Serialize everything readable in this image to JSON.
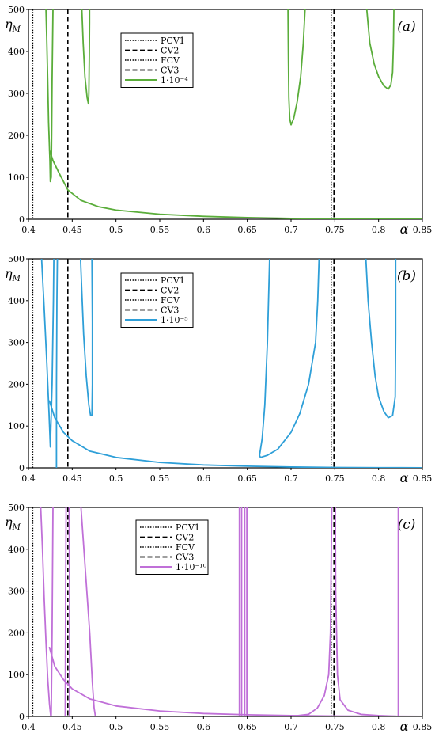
{
  "chart_data": [
    {
      "type": "line",
      "panel_label": "(a)",
      "xlabel": "α",
      "ylabel": "η_M",
      "xlim": [
        0.4,
        0.85
      ],
      "ylim": [
        0,
        500
      ],
      "xticks": [
        0.4,
        0.45,
        0.5,
        0.55,
        0.6,
        0.65,
        0.7,
        0.75,
        0.8,
        0.85
      ],
      "yticks": [
        0,
        100,
        200,
        300,
        400,
        500
      ],
      "grid": false,
      "legend_position": "upper-center",
      "vlines": [
        {
          "name": "PCV1",
          "x": 0.405,
          "style": "dotted"
        },
        {
          "name": "CV2",
          "x": 0.445,
          "style": "dashed"
        },
        {
          "name": "FCV",
          "x": 0.746,
          "style": "dotted"
        },
        {
          "name": "CV3",
          "x": 0.749,
          "style": "dashed"
        }
      ],
      "series": [
        {
          "name": "1·10⁻⁴",
          "color": "#5aad3a",
          "curves": [
            [
              [
                0.42,
                500
              ],
              [
                0.421,
                420
              ],
              [
                0.422,
                330
              ],
              [
                0.423,
                230
              ],
              [
                0.4245,
                140
              ],
              [
                0.425,
                90
              ],
              [
                0.426,
                100
              ],
              [
                0.4265,
                200
              ],
              [
                0.427,
                330
              ],
              [
                0.428,
                500
              ]
            ],
            [
              [
                0.424,
                165
              ],
              [
                0.428,
                140
              ],
              [
                0.435,
                110
              ],
              [
                0.445,
                70
              ],
              [
                0.46,
                45
              ],
              [
                0.48,
                30
              ],
              [
                0.5,
                22
              ],
              [
                0.55,
                12
              ],
              [
                0.6,
                7
              ],
              [
                0.65,
                4
              ],
              [
                0.7,
                2
              ],
              [
                0.75,
                1
              ],
              [
                0.8,
                0.5
              ],
              [
                0.85,
                0.3
              ]
            ],
            [
              [
                0.461,
                500
              ],
              [
                0.4625,
                420
              ],
              [
                0.4645,
                340
              ],
              [
                0.467,
                290
              ],
              [
                0.4685,
                275
              ],
              [
                0.469,
                300
              ],
              [
                0.4695,
                390
              ],
              [
                0.4698,
                470
              ],
              [
                0.4698,
                500
              ]
            ],
            [
              [
                0.6965,
                500
              ],
              [
                0.697,
                380
              ],
              [
                0.6975,
                290
              ],
              [
                0.6985,
                240
              ],
              [
                0.7,
                225
              ],
              [
                0.703,
                240
              ],
              [
                0.707,
                280
              ],
              [
                0.711,
                340
              ],
              [
                0.714,
                420
              ],
              [
                0.716,
                500
              ]
            ],
            [
              [
                0.7865,
                500
              ],
              [
                0.79,
                420
              ],
              [
                0.795,
                370
              ],
              [
                0.8,
                340
              ],
              [
                0.806,
                318
              ],
              [
                0.811,
                310
              ],
              [
                0.814,
                320
              ],
              [
                0.816,
                350
              ],
              [
                0.817,
                420
              ],
              [
                0.8175,
                500
              ]
            ]
          ]
        }
      ]
    },
    {
      "type": "line",
      "panel_label": "(b)",
      "xlabel": "α",
      "ylabel": "η_M",
      "xlim": [
        0.4,
        0.85
      ],
      "ylim": [
        0,
        500
      ],
      "xticks": [
        0.4,
        0.45,
        0.5,
        0.55,
        0.6,
        0.65,
        0.7,
        0.75,
        0.8,
        0.85
      ],
      "yticks": [
        0,
        100,
        200,
        300,
        400,
        500
      ],
      "grid": false,
      "legend_position": "upper-center",
      "vlines": [
        {
          "name": "PCV1",
          "x": 0.405,
          "style": "dotted"
        },
        {
          "name": "CV2",
          "x": 0.445,
          "style": "dashed"
        },
        {
          "name": "FCV",
          "x": 0.746,
          "style": "dotted"
        },
        {
          "name": "CV3",
          "x": 0.749,
          "style": "dashed"
        }
      ],
      "series": [
        {
          "name": "1·10⁻⁵",
          "color": "#2e9fd8",
          "curves": [
            [
              [
                0.415,
                500
              ],
              [
                0.418,
                380
              ],
              [
                0.421,
                250
              ],
              [
                0.4235,
                130
              ],
              [
                0.425,
                50
              ],
              [
                0.427,
                200
              ],
              [
                0.4285,
                400
              ],
              [
                0.429,
                500
              ]
            ],
            [
              [
                0.424,
                160
              ],
              [
                0.43,
                120
              ],
              [
                0.44,
                85
              ],
              [
                0.45,
                65
              ],
              [
                0.47,
                40
              ],
              [
                0.5,
                25
              ],
              [
                0.55,
                13
              ],
              [
                0.6,
                7
              ],
              [
                0.65,
                4
              ],
              [
                0.7,
                2
              ],
              [
                0.75,
                1
              ],
              [
                0.8,
                0.5
              ],
              [
                0.85,
                0.3
              ]
            ],
            [
              [
                0.433,
                500
              ],
              [
                0.4325,
                400
              ],
              [
                0.432,
                200
              ],
              [
                0.432,
                0
              ]
            ],
            [
              [
                0.4595,
                500
              ],
              [
                0.461,
                420
              ],
              [
                0.463,
                320
              ],
              [
                0.466,
                220
              ],
              [
                0.469,
                150
              ],
              [
                0.471,
                125
              ],
              [
                0.4725,
                125
              ],
              [
                0.473,
                200
              ],
              [
                0.473,
                350
              ],
              [
                0.4725,
                500
              ]
            ],
            [
              [
                0.6755,
                500
              ],
              [
                0.673,
                300
              ],
              [
                0.67,
                150
              ],
              [
                0.667,
                70
              ],
              [
                0.664,
                30
              ],
              [
                0.665,
                25
              ],
              [
                0.673,
                30
              ],
              [
                0.685,
                45
              ],
              [
                0.7,
                85
              ],
              [
                0.71,
                130
              ],
              [
                0.72,
                200
              ],
              [
                0.728,
                300
              ],
              [
                0.7305,
                400
              ],
              [
                0.732,
                500
              ]
            ],
            [
              [
                0.7855,
                500
              ],
              [
                0.788,
                400
              ],
              [
                0.792,
                300
              ],
              [
                0.796,
                220
              ],
              [
                0.8,
                170
              ],
              [
                0.806,
                135
              ],
              [
                0.811,
                120
              ],
              [
                0.816,
                125
              ],
              [
                0.819,
                170
              ],
              [
                0.8195,
                320
              ],
              [
                0.8195,
                500
              ]
            ]
          ]
        }
      ]
    },
    {
      "type": "line",
      "panel_label": "(c)",
      "xlabel": "α",
      "ylabel": "η_M",
      "xlim": [
        0.4,
        0.85
      ],
      "ylim": [
        0,
        500
      ],
      "xticks": [
        0.4,
        0.45,
        0.5,
        0.55,
        0.6,
        0.65,
        0.7,
        0.75,
        0.8,
        0.85
      ],
      "yticks": [
        0,
        100,
        200,
        300,
        400,
        500
      ],
      "grid": false,
      "legend_position": "upper-center",
      "vlines": [
        {
          "name": "PCV1",
          "x": 0.405,
          "style": "dotted"
        },
        {
          "name": "CV2",
          "x": 0.445,
          "style": "dashed"
        },
        {
          "name": "FCV",
          "x": 0.746,
          "style": "dotted"
        },
        {
          "name": "CV3",
          "x": 0.749,
          "style": "dashed"
        }
      ],
      "series": [
        {
          "name": "1·10⁻¹⁰",
          "color": "#c070d8",
          "curves": [
            [
              [
                0.414,
                500
              ],
              [
                0.416,
                400
              ],
              [
                0.418,
                280
              ],
              [
                0.42,
                180
              ],
              [
                0.422,
                90
              ],
              [
                0.424,
                30
              ],
              [
                0.4255,
                0
              ]
            ],
            [
              [
                0.424,
                165
              ],
              [
                0.43,
                120
              ],
              [
                0.44,
                88
              ],
              [
                0.45,
                66
              ],
              [
                0.47,
                42
              ],
              [
                0.5,
                25
              ],
              [
                0.55,
                13
              ],
              [
                0.6,
                7
              ],
              [
                0.65,
                4
              ],
              [
                0.7,
                2
              ],
              [
                0.75,
                1
              ],
              [
                0.8,
                0.5
              ],
              [
                0.85,
                0.3
              ]
            ],
            [
              [
                0.426,
                0
              ],
              [
                0.427,
                200
              ],
              [
                0.428,
                500
              ]
            ],
            [
              [
                0.442,
                0
              ],
              [
                0.4425,
                300
              ],
              [
                0.443,
                500
              ]
            ],
            [
              [
                0.4465,
                500
              ],
              [
                0.447,
                300
              ],
              [
                0.447,
                0
              ]
            ],
            [
              [
                0.46,
                500
              ],
              [
                0.465,
                350
              ],
              [
                0.47,
                200
              ],
              [
                0.473,
                80
              ],
              [
                0.475,
                20
              ],
              [
                0.4765,
                0
              ]
            ],
            [
              [
                0.641,
                0
              ],
              [
                0.641,
                500
              ]
            ],
            [
              [
                0.6435,
                500
              ],
              [
                0.6435,
                0
              ]
            ],
            [
              [
                0.647,
                0
              ],
              [
                0.647,
                500
              ]
            ],
            [
              [
                0.6495,
                500
              ],
              [
                0.6495,
                0
              ]
            ],
            [
              [
                0.7,
                0
              ],
              [
                0.72,
                5
              ],
              [
                0.73,
                20
              ],
              [
                0.738,
                50
              ],
              [
                0.743,
                100
              ],
              [
                0.745,
                200
              ],
              [
                0.746,
                400
              ],
              [
                0.7465,
                500
              ]
            ],
            [
              [
                0.7505,
                500
              ],
              [
                0.751,
                300
              ],
              [
                0.753,
                100
              ],
              [
                0.756,
                40
              ],
              [
                0.765,
                15
              ],
              [
                0.78,
                5
              ],
              [
                0.8,
                2
              ],
              [
                0.82,
                0.5
              ]
            ],
            [
              [
                0.8225,
                500
              ],
              [
                0.8225,
                0
              ]
            ]
          ]
        }
      ]
    }
  ]
}
